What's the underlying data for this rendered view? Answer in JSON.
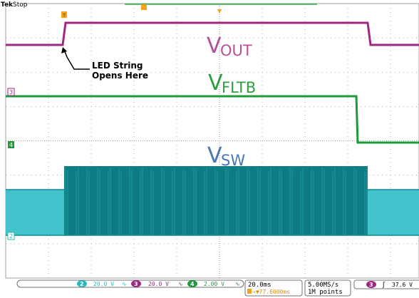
{
  "header": {
    "brand": "Tek",
    "status": "Stop"
  },
  "traces": {
    "vout": {
      "label_main": "V",
      "label_sub": "OUT",
      "color": "#b5509a"
    },
    "vfltb": {
      "label_main": "V",
      "label_sub": "FLTB",
      "color": "#2e9e3e"
    },
    "vsw": {
      "label_main": "V",
      "label_sub": "SW",
      "color": "#4a76b8"
    }
  },
  "annotation": {
    "line1": "LED String",
    "line2": "Opens Here"
  },
  "channel_markers": {
    "ch3": "3",
    "ch4": "4",
    "ch2": "2"
  },
  "status_bar": {
    "ch2": {
      "num": "2",
      "scale": "20.0 V",
      "color": "#2ab7c0"
    },
    "ch3": {
      "num": "3",
      "scale": "20.0 V",
      "color": "#a0277f"
    },
    "ch4": {
      "num": "4",
      "scale": "2.00 V",
      "color": "#1f9a3a"
    },
    "bw_symbol": "∿",
    "timebase": "20.0ms",
    "trigger_position": "→▼77.6000ms",
    "sample_rate": "5.00MS/s",
    "record_length": "1M points",
    "trigger_channel": "3",
    "trigger_slope": "ʃ",
    "trigger_level": "37.6 V"
  }
}
